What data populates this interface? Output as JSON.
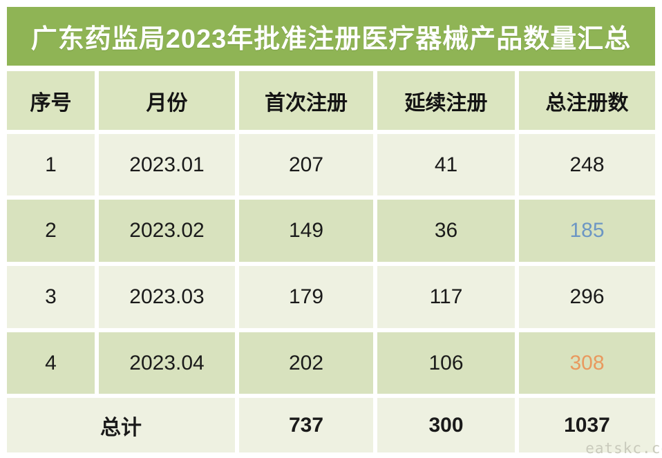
{
  "title": "广东药监局2023年批准注册医疗器械产品数量汇总",
  "watermark": "eatskc.co",
  "colors": {
    "title_bg": "#8FB455",
    "title_text": "#FFFFFF",
    "header_bg": "#DBE5C0",
    "row_light_bg": "#EEF1E1",
    "row_dark_bg": "#D8E2BE",
    "body_text": "#1A1A1A",
    "highlight_blue": "#6C96C4",
    "highlight_orange": "#E9995E",
    "watermark_text": "#C9CABC"
  },
  "chart_data": {
    "type": "table",
    "title": "广东药监局2023年批准注册医疗器械产品数量汇总",
    "columns": [
      "序号",
      "月份",
      "首次注册",
      "延续注册",
      "总注册数"
    ],
    "rows": [
      [
        "1",
        "2023.01",
        "207",
        "41",
        "248"
      ],
      [
        "2",
        "2023.02",
        "149",
        "36",
        "185"
      ],
      [
        "3",
        "2023.03",
        "179",
        "117",
        "296"
      ],
      [
        "4",
        "2023.04",
        "202",
        "106",
        "308"
      ]
    ],
    "total": {
      "label": "总计",
      "values": [
        "737",
        "300",
        "1037"
      ]
    },
    "highlights": [
      {
        "row": 1,
        "column": "总注册数",
        "value": "185",
        "color": "#6C96C4"
      },
      {
        "row": 3,
        "column": "总注册数",
        "value": "308",
        "color": "#E9995E"
      }
    ]
  }
}
